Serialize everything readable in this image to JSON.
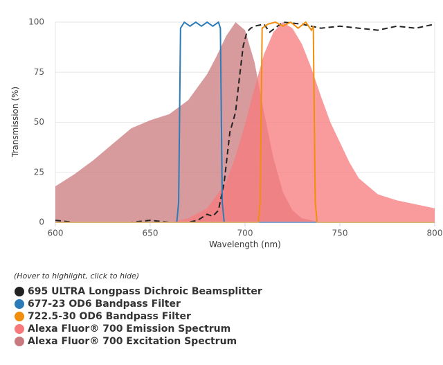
{
  "chart_data": {
    "type": "line",
    "xlabel": "Wavelength (nm)",
    "ylabel": "Transmission (%)",
    "xlim": [
      600,
      800
    ],
    "xticks": [
      600,
      650,
      700,
      750,
      800
    ],
    "ylim": [
      0,
      100
    ],
    "yticks": [
      0,
      25,
      50,
      75,
      100
    ],
    "grid": true,
    "legend_note": "(Hover to highlight, click to hide)",
    "series": [
      {
        "name": "695 ULTRA Longpass Dichroic Beamsplitter",
        "color": "#222222",
        "dashed": true,
        "fill": false,
        "x": [
          600,
          610,
          620,
          630,
          640,
          650,
          660,
          670,
          675,
          680,
          683,
          686,
          689,
          692,
          695,
          697,
          699,
          701,
          703,
          705,
          710,
          713,
          720,
          730,
          740,
          750,
          760,
          770,
          780,
          790,
          800
        ],
        "values": [
          1,
          0,
          0,
          0,
          0,
          1,
          0,
          0,
          1,
          4,
          3,
          6,
          20,
          45,
          55,
          72,
          88,
          95,
          97,
          98,
          99,
          95,
          100,
          99,
          97,
          98,
          97,
          96,
          98,
          97,
          99
        ]
      },
      {
        "name": "677-23 OD6 Bandpass Filter",
        "color": "#2b7bb9",
        "dashed": false,
        "fill": false,
        "x": [
          600,
          664,
          665,
          666,
          668,
          671,
          674,
          677,
          680,
          683,
          686,
          687,
          688,
          689,
          800
        ],
        "values": [
          0,
          0,
          10,
          97,
          100,
          98,
          100,
          98,
          100,
          98,
          100,
          97,
          10,
          0,
          0
        ]
      },
      {
        "name": "722.5-30 OD6 Bandpass Filter",
        "color": "#f28e0e",
        "dashed": false,
        "fill": false,
        "x": [
          600,
          707,
          708,
          709,
          712,
          716,
          720,
          724,
          728,
          732,
          735,
          736,
          737,
          738,
          800
        ],
        "values": [
          0,
          0,
          10,
          97,
          99,
          100,
          98,
          100,
          97,
          100,
          96,
          98,
          10,
          0,
          0
        ]
      },
      {
        "name": "Alexa Fluor® 700 Emission Spectrum",
        "color": "#f7797b",
        "dashed": false,
        "fill": true,
        "x": [
          600,
          650,
          660,
          670,
          680,
          690,
          695,
          700,
          705,
          710,
          715,
          720,
          725,
          730,
          735,
          740,
          745,
          750,
          755,
          760,
          770,
          780,
          790,
          800
        ],
        "values": [
          0,
          0,
          0,
          2,
          7,
          20,
          33,
          49,
          67,
          84,
          95,
          100,
          97,
          89,
          77,
          63,
          50,
          40,
          30,
          22,
          14,
          11,
          9,
          7
        ]
      },
      {
        "name": "Alexa Fluor® 700 Excitation Spectrum",
        "color": "#c97a7e",
        "dashed": false,
        "fill": true,
        "x": [
          600,
          610,
          620,
          630,
          640,
          650,
          660,
          670,
          680,
          685,
          690,
          695,
          700,
          705,
          710,
          715,
          720,
          725,
          730,
          740,
          800
        ],
        "values": [
          18,
          24,
          31,
          39,
          47,
          51,
          54,
          61,
          74,
          83,
          93,
          100,
          96,
          80,
          55,
          32,
          15,
          6,
          2,
          0,
          0
        ]
      }
    ]
  }
}
